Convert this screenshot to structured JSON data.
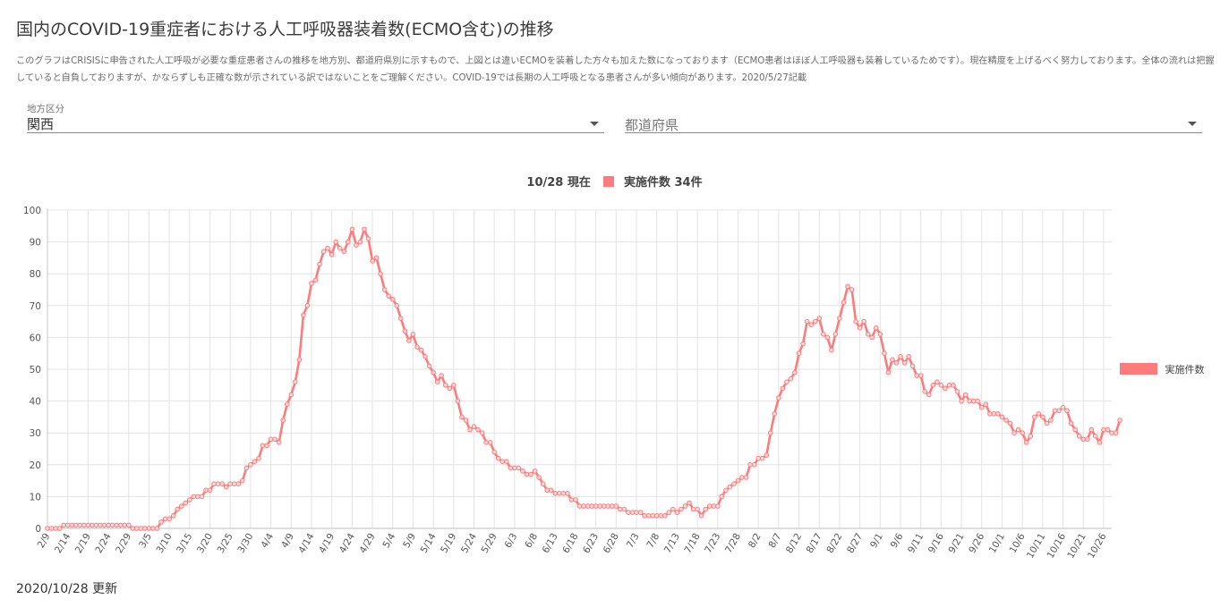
{
  "page": {
    "title": "国内のCOVID-19重症者における人工呼吸器装着数(ECMO含む)の推移",
    "description": "このグラフはCRISISに申告された人工呼吸が必要な重症患者さんの推移を地方別、都道府県別に示すもので、上図とは違いECMOを装着した方々も加えた数になっております（ECMO患者はほぼ人工呼吸器も装着しているためです）。現在精度を上げるべく努力しております。全体の流れは把握していると自負しておりますが、かならずしも正確な数が示されている訳ではないことをご理解ください。COVID-19では長期の人工呼吸となる患者さんが多い傾向があります。2020/5/27記載",
    "updated": "2020/10/28 更新"
  },
  "filters": {
    "region_label": "地方区分",
    "region_value": "関西",
    "prefecture_placeholder": "都道府県"
  },
  "chart_header": {
    "date": "10/28 現在",
    "series_label": "実施件数",
    "count": "34件"
  },
  "colors": {
    "series": "#ff7b7b",
    "grid": "#e3e3e3"
  },
  "chart_data": {
    "type": "line",
    "title": "",
    "xlabel": "",
    "ylabel": "",
    "ylim": [
      0,
      100
    ],
    "yticks": [
      0,
      10,
      20,
      30,
      40,
      50,
      60,
      70,
      80,
      90,
      100
    ],
    "grid": true,
    "legend_position": "right",
    "x_start": "2020-02-09",
    "x_end": "2020-10-28",
    "x_ticks": [
      "2/9",
      "2/14",
      "2/19",
      "2/24",
      "2/29",
      "3/5",
      "3/10",
      "3/15",
      "3/20",
      "3/25",
      "3/30",
      "4/4",
      "4/9",
      "4/14",
      "4/19",
      "4/24",
      "4/29",
      "5/4",
      "5/9",
      "5/14",
      "5/19",
      "5/24",
      "5/29",
      "6/3",
      "6/8",
      "6/13",
      "6/18",
      "6/23",
      "6/28",
      "7/3",
      "7/8",
      "7/13",
      "7/18",
      "7/23",
      "7/28",
      "8/2",
      "8/7",
      "8/12",
      "8/17",
      "8/22",
      "8/27",
      "9/1",
      "9/6",
      "9/11",
      "9/16",
      "9/21",
      "9/26",
      "10/1",
      "10/6",
      "10/11",
      "10/16",
      "10/21",
      "10/26"
    ],
    "series": [
      {
        "name": "実施件数",
        "values": [
          0,
          0,
          0,
          0,
          1,
          1,
          1,
          1,
          1,
          1,
          1,
          1,
          1,
          1,
          1,
          1,
          1,
          1,
          1,
          1,
          1,
          0,
          0,
          0,
          0,
          0,
          0,
          0,
          2,
          3,
          3,
          4,
          6,
          7,
          8,
          9,
          10,
          10,
          10,
          12,
          12,
          14,
          14,
          14,
          13,
          14,
          14,
          14,
          15,
          19,
          20,
          21,
          22,
          26,
          26,
          28,
          28,
          27,
          34,
          39,
          42,
          46,
          53,
          67,
          70,
          77,
          78,
          83,
          87,
          88,
          86,
          90,
          88,
          87,
          90,
          94,
          89,
          90,
          94,
          91,
          84,
          85,
          80,
          75,
          73,
          72,
          70,
          66,
          62,
          59,
          61,
          57,
          56,
          54,
          51,
          49,
          46,
          48,
          45,
          44,
          45,
          40,
          35,
          34,
          31,
          32,
          31,
          30,
          27,
          27,
          24,
          22,
          21,
          21,
          19,
          19,
          19,
          18,
          17,
          17,
          18,
          16,
          14,
          12,
          12,
          11,
          11,
          11,
          11,
          9,
          9,
          7,
          7,
          7,
          7,
          7,
          7,
          7,
          7,
          7,
          7,
          6,
          6,
          5,
          5,
          5,
          5,
          4,
          4,
          4,
          4,
          4,
          4,
          5,
          6,
          5,
          6,
          7,
          8,
          6,
          6,
          4,
          6,
          7,
          7,
          7,
          10,
          12,
          13,
          14,
          15,
          16,
          16,
          20,
          20,
          22,
          22,
          23,
          30,
          36,
          41,
          44,
          46,
          47,
          49,
          55,
          58,
          65,
          64,
          65,
          66,
          61,
          60,
          56,
          61,
          66,
          71,
          76,
          75,
          65,
          63,
          65,
          61,
          60,
          63,
          61,
          55,
          49,
          53,
          52,
          54,
          52,
          54,
          51,
          48,
          48,
          43,
          42,
          45,
          46,
          45,
          44,
          45,
          45,
          43,
          40,
          42,
          40,
          40,
          40,
          38,
          39,
          36,
          36,
          36,
          35,
          34,
          33,
          30,
          31,
          30,
          27,
          29,
          35,
          36,
          35,
          33,
          34,
          37,
          37,
          38,
          37,
          33,
          31,
          29,
          28,
          28,
          31,
          29,
          27,
          31,
          31,
          30,
          30,
          34
        ]
      }
    ]
  }
}
